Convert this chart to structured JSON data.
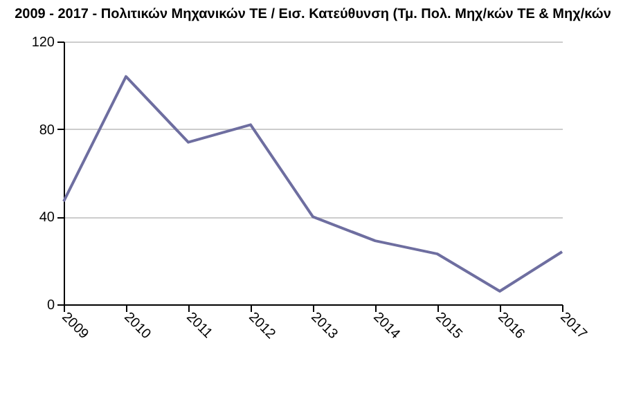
{
  "chart_data": {
    "type": "line",
    "title": "2009 - 2017 - Πολιτικών Μηχανικών ΤΕ / Εισ. Κατεύθυνση (Τμ. Πολ. Μηχ/κών ΤΕ & Μηχ/κών",
    "categories": [
      "2009",
      "2010",
      "2011",
      "2012",
      "2013",
      "2014",
      "2015",
      "2016",
      "2017"
    ],
    "series": [
      {
        "color": "#6e6ea0",
        "values": [
          47,
          104,
          74,
          82,
          40,
          29,
          23,
          6,
          24
        ]
      }
    ],
    "ylim": [
      0,
      120
    ],
    "yticks": [
      0,
      40,
      80,
      120
    ],
    "grid": "y",
    "legend": false,
    "marker": "none",
    "line_style": "solid"
  }
}
